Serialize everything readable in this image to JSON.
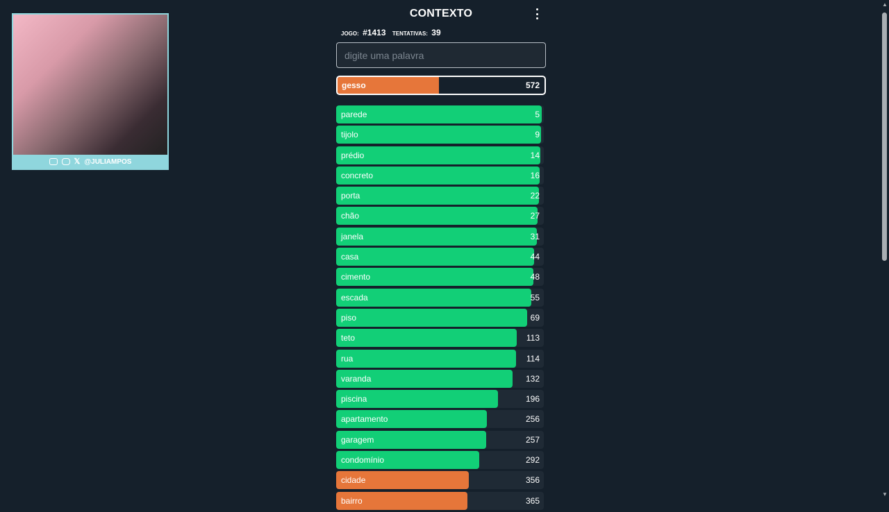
{
  "webcam": {
    "handle": "@JULIAMPOS"
  },
  "header": {
    "title": "CONTEXTO"
  },
  "stats": {
    "game_label": "JOGO:",
    "game_value": "#1413",
    "tries_label": "TENTATIVAS:",
    "tries_value": "39"
  },
  "search": {
    "placeholder": "digite uma palavra",
    "value": ""
  },
  "current_guess": {
    "word": "gesso",
    "rank": "572",
    "fill": 0.49
  },
  "colors": {
    "green": "#12cf77",
    "orange": "#e6763a",
    "track": "#1f2a35",
    "background": "#15202b"
  },
  "guesses": [
    {
      "word": "parede",
      "rank": "5",
      "fill": 0.99,
      "color": "green"
    },
    {
      "word": "tijolo",
      "rank": "9",
      "fill": 0.987,
      "color": "green"
    },
    {
      "word": "prédio",
      "rank": "14",
      "fill": 0.983,
      "color": "green"
    },
    {
      "word": "concreto",
      "rank": "16",
      "fill": 0.98,
      "color": "green"
    },
    {
      "word": "porta",
      "rank": "22",
      "fill": 0.977,
      "color": "green"
    },
    {
      "word": "chão",
      "rank": "27",
      "fill": 0.97,
      "color": "green"
    },
    {
      "word": "janela",
      "rank": "31",
      "fill": 0.967,
      "color": "green"
    },
    {
      "word": "casa",
      "rank": "44",
      "fill": 0.953,
      "color": "green"
    },
    {
      "word": "cimento",
      "rank": "48",
      "fill": 0.95,
      "color": "green"
    },
    {
      "word": "escada",
      "rank": "55",
      "fill": 0.94,
      "color": "green"
    },
    {
      "word": "piso",
      "rank": "69",
      "fill": 0.92,
      "color": "green"
    },
    {
      "word": "teto",
      "rank": "113",
      "fill": 0.87,
      "color": "green"
    },
    {
      "word": "rua",
      "rank": "114",
      "fill": 0.867,
      "color": "green"
    },
    {
      "word": "varanda",
      "rank": "132",
      "fill": 0.85,
      "color": "green"
    },
    {
      "word": "piscina",
      "rank": "196",
      "fill": 0.78,
      "color": "green"
    },
    {
      "word": "apartamento",
      "rank": "256",
      "fill": 0.726,
      "color": "green"
    },
    {
      "word": "garagem",
      "rank": "257",
      "fill": 0.723,
      "color": "green"
    },
    {
      "word": "condomínio",
      "rank": "292",
      "fill": 0.69,
      "color": "green"
    },
    {
      "word": "cidade",
      "rank": "356",
      "fill": 0.64,
      "color": "orange"
    },
    {
      "word": "bairro",
      "rank": "365",
      "fill": 0.633,
      "color": "orange"
    }
  ]
}
